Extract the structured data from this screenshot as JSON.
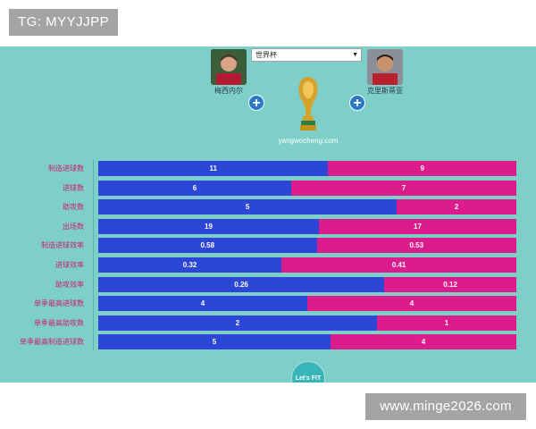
{
  "overlay": {
    "top_left": "TG: MYYJJPP",
    "bottom_right": "www.minge2026.com"
  },
  "header": {
    "left_player": "梅西内尔",
    "right_player": "克里斯蒂亚",
    "select_value": "世界杯",
    "site": "yangwocheng.com",
    "plus_symbol": "+"
  },
  "footer": {
    "lets_label": "Let's FIT"
  },
  "colors": {
    "panel_bg": "#7dcfc7",
    "left_series": "#2c46d8",
    "right_series": "#dc1c8c",
    "label_color": "#d01e6e"
  },
  "chart_data": {
    "type": "bar",
    "orientation": "horizontal-stacked-percentage",
    "categories": [
      "制造进球数",
      "进球数",
      "助攻数",
      "出场数",
      "制造进球效率",
      "进球效率",
      "助攻效率",
      "单季最高进球数",
      "单季最高助攻数",
      "单季最高制造进球数"
    ],
    "series": [
      {
        "values": [
          11,
          6,
          5,
          19,
          0.58,
          0.32,
          0.26,
          4,
          2,
          5
        ],
        "labels": [
          "11",
          "6",
          "5",
          "19",
          "0.58",
          "0.32",
          "0.26",
          "4",
          "2",
          "5"
        ]
      },
      {
        "values": [
          9,
          7,
          2,
          17,
          0.53,
          0.41,
          0.12,
          4,
          1,
          4
        ],
        "labels": [
          "9",
          "7",
          "2",
          "17",
          "0.53",
          "0.41",
          "0.12",
          "4",
          "1",
          "4"
        ]
      }
    ]
  }
}
